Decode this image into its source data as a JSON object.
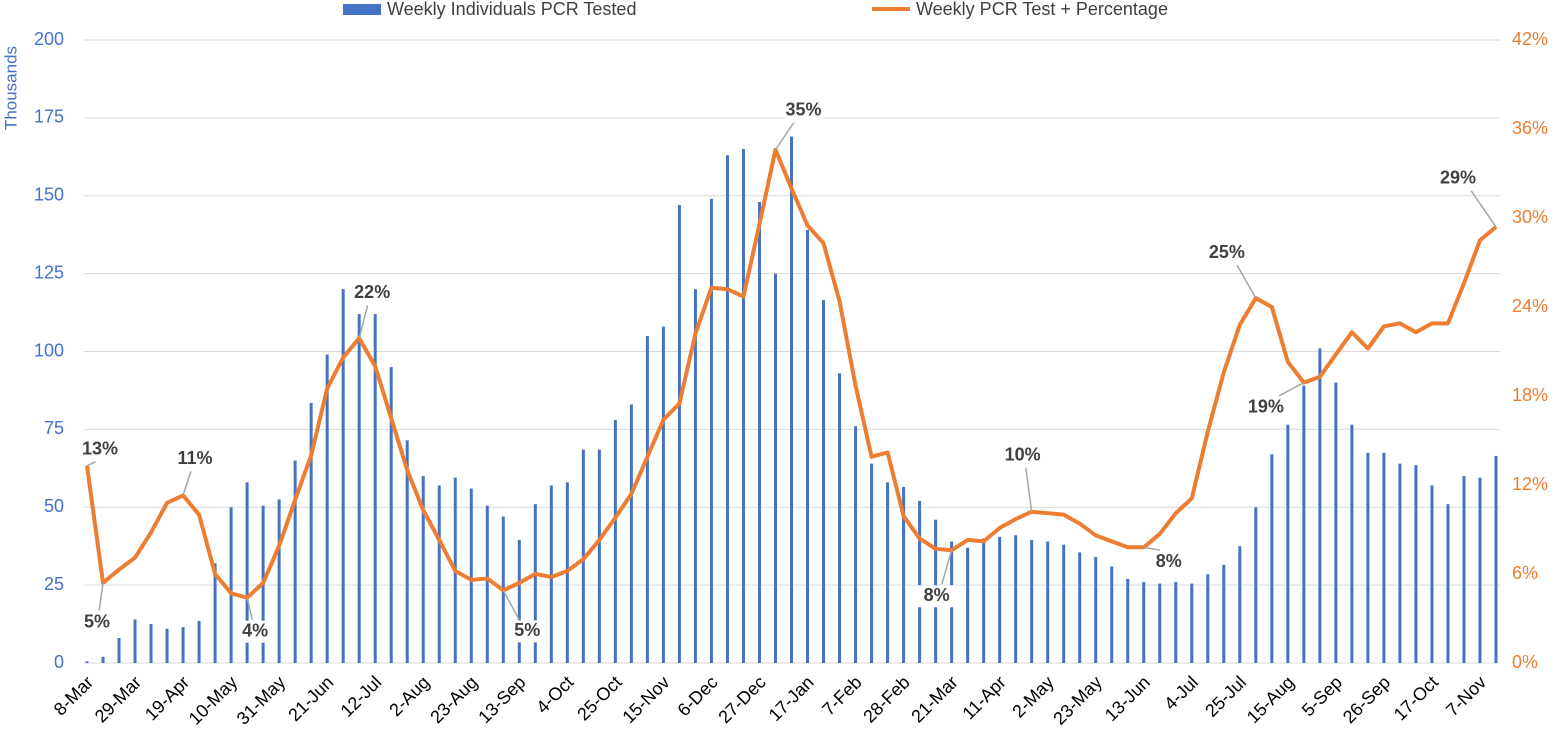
{
  "chart_data": {
    "type": "combo",
    "y_label": "Thousands",
    "categories": [
      "8-Mar",
      null,
      null,
      "29-Mar",
      null,
      null,
      "19-Apr",
      null,
      null,
      "10-May",
      null,
      null,
      "31-May",
      null,
      null,
      "21-Jun",
      null,
      null,
      "12-Jul",
      null,
      null,
      "2-Aug",
      null,
      null,
      "23-Aug",
      null,
      null,
      "13-Sep",
      null,
      null,
      "4-Oct",
      null,
      null,
      "25-Oct",
      null,
      null,
      "15-Nov",
      null,
      null,
      "6-Dec",
      null,
      null,
      "27-Dec",
      null,
      null,
      "17-Jan",
      null,
      null,
      "7-Feb",
      null,
      null,
      "28-Feb",
      null,
      null,
      "21-Mar",
      null,
      null,
      "11-Apr",
      null,
      null,
      "2-May",
      null,
      null,
      "23-May",
      null,
      null,
      "13-Jun",
      null,
      null,
      "4-Jul",
      null,
      null,
      "25-Jul",
      null,
      null,
      "15-Aug",
      null,
      null,
      "5-Sep",
      null,
      null,
      "26-Sep",
      null,
      null,
      "17-Oct",
      null,
      null,
      "7-Nov",
      null
    ],
    "series": [
      {
        "name": "Weekly Individuals PCR Tested",
        "type": "bar",
        "color": "#4472c4",
        "values": [
          0.5,
          2,
          8,
          14,
          12.5,
          11,
          11.5,
          13.5,
          32,
          50,
          58,
          50.5,
          52.5,
          65,
          83.5,
          99,
          120,
          112,
          112,
          95,
          71.5,
          60,
          57,
          59.5,
          56,
          50.5,
          47,
          39.5,
          51,
          57,
          58,
          68.5,
          68.5,
          78,
          83,
          105,
          108,
          147,
          120,
          149,
          163,
          165,
          148,
          125,
          169,
          139,
          116.5,
          93,
          76,
          64,
          58,
          56.5,
          52,
          46,
          39,
          37,
          40,
          40.5,
          41,
          39.5,
          39,
          38,
          35.5,
          34,
          31,
          27,
          26,
          25.5,
          26,
          25.5,
          28.5,
          31.5,
          37.5,
          50,
          67,
          76.5,
          89,
          101,
          90,
          76.5,
          67.5,
          67.5,
          64,
          63.5,
          57,
          51,
          60,
          59.5,
          66.5
        ]
      },
      {
        "name": "Weekly PCR Test + Percentage",
        "type": "line",
        "axis": "y2",
        "color": "#ed7d31",
        "values": [
          13.3,
          5.4,
          6.3,
          7.1,
          8.8,
          10.8,
          11.3,
          10.0,
          6.0,
          4.7,
          4.4,
          5.4,
          7.9,
          11.0,
          14.0,
          18.5,
          20.6,
          21.9,
          20.0,
          16.5,
          13.0,
          10.3,
          8.3,
          6.2,
          5.6,
          5.7,
          4.9,
          5.4,
          6.0,
          5.8,
          6.2,
          7.0,
          8.3,
          9.8,
          11.4,
          13.9,
          16.4,
          17.5,
          22.2,
          25.3,
          25.2,
          24.7,
          29.6,
          34.6,
          32.0,
          29.5,
          28.3,
          24.4,
          18.7,
          13.9,
          14.2,
          9.9,
          8.4,
          7.7,
          7.6,
          8.3,
          8.2,
          9.1,
          9.7,
          10.2,
          10.1,
          10.0,
          9.4,
          8.6,
          8.2,
          7.8,
          7.8,
          8.7,
          10.1,
          11.1,
          15.6,
          19.6,
          22.8,
          24.6,
          24.0,
          20.3,
          18.9,
          19.3,
          20.8,
          22.3,
          21.2,
          22.7,
          22.9,
          22.3,
          22.9,
          22.9,
          25.6,
          28.5,
          29.4
        ],
        "value_labels": [
          "13%",
          "5%",
          null,
          null,
          null,
          null,
          "11%",
          null,
          null,
          null,
          "4%",
          null,
          null,
          null,
          null,
          null,
          null,
          "22%",
          null,
          null,
          null,
          null,
          null,
          null,
          null,
          null,
          "5%",
          null,
          null,
          null,
          null,
          null,
          null,
          null,
          null,
          null,
          null,
          null,
          null,
          null,
          null,
          null,
          null,
          "35%",
          null,
          null,
          null,
          null,
          null,
          null,
          null,
          null,
          null,
          null,
          "8%",
          null,
          null,
          null,
          null,
          "10%",
          null,
          null,
          null,
          null,
          null,
          null,
          "8%",
          null,
          null,
          null,
          null,
          null,
          null,
          "25%",
          null,
          null,
          "19%",
          null,
          null,
          null,
          null,
          null,
          null,
          null,
          null,
          null,
          null,
          null,
          "29%"
        ]
      }
    ],
    "ylim": [
      0,
      200
    ],
    "yticks": [
      0,
      25,
      50,
      75,
      100,
      125,
      150,
      175,
      200
    ],
    "y2lim": [
      0,
      42
    ],
    "y2ticks": [
      {
        "value": 0,
        "label": "0%"
      },
      {
        "value": 6,
        "label": "6%"
      },
      {
        "value": 12,
        "label": "12%"
      },
      {
        "value": 18,
        "label": "18%"
      },
      {
        "value": 24,
        "label": "24%"
      },
      {
        "value": 30,
        "label": "30%"
      },
      {
        "value": 36,
        "label": "36%"
      },
      {
        "value": 42,
        "label": "42%"
      }
    ],
    "grid": true,
    "legend": "top"
  }
}
